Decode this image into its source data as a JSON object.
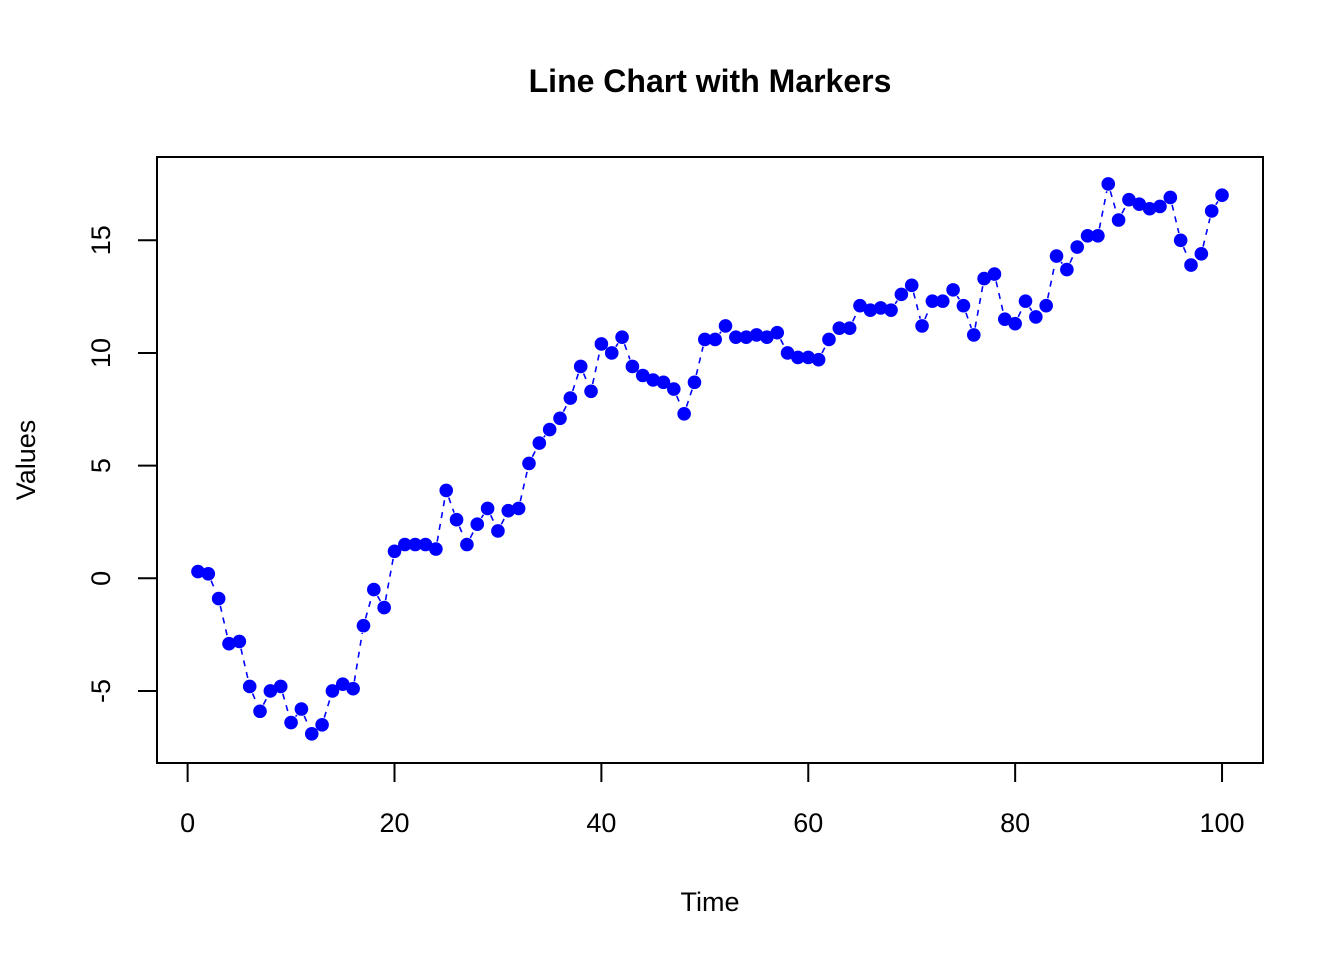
{
  "chart_data": {
    "type": "line",
    "title": "Line Chart with Markers",
    "xlabel": "Time",
    "ylabel": "Values",
    "xlim": [
      1,
      100
    ],
    "ylim": [
      -7.2,
      17.7
    ],
    "x_ticks": [
      0,
      20,
      40,
      60,
      80,
      100
    ],
    "y_ticks": [
      -5,
      0,
      5,
      10,
      15
    ],
    "x_tick_labels": [
      "0",
      "20",
      "40",
      "60",
      "80",
      "100"
    ],
    "y_tick_labels": [
      "-5",
      "0",
      "5",
      "10",
      "15"
    ],
    "grid": false,
    "line_style": "dashed",
    "marker": "filled-circle",
    "series_color": "#0000FF",
    "series": [
      {
        "name": "Values",
        "x": [
          1,
          2,
          3,
          4,
          5,
          6,
          7,
          8,
          9,
          10,
          11,
          12,
          13,
          14,
          15,
          16,
          17,
          18,
          19,
          20,
          21,
          22,
          23,
          24,
          25,
          26,
          27,
          28,
          29,
          30,
          31,
          32,
          33,
          34,
          35,
          36,
          37,
          38,
          39,
          40,
          41,
          42,
          43,
          44,
          45,
          46,
          47,
          48,
          49,
          50,
          51,
          52,
          53,
          54,
          55,
          56,
          57,
          58,
          59,
          60,
          61,
          62,
          63,
          64,
          65,
          66,
          67,
          68,
          69,
          70,
          71,
          72,
          73,
          74,
          75,
          76,
          77,
          78,
          79,
          80,
          81,
          82,
          83,
          84,
          85,
          86,
          87,
          88,
          89,
          90,
          91,
          92,
          93,
          94,
          95,
          96,
          97,
          98,
          99,
          100
        ],
        "values": [
          0.3,
          0.2,
          -0.9,
          -2.9,
          -2.8,
          -4.8,
          -5.9,
          -5.0,
          -4.8,
          -6.4,
          -5.8,
          -6.9,
          -6.5,
          -5.0,
          -4.7,
          -4.9,
          -2.1,
          -0.5,
          -1.3,
          1.2,
          1.5,
          1.5,
          1.5,
          1.3,
          3.9,
          2.6,
          1.5,
          2.4,
          3.1,
          2.1,
          3.0,
          3.1,
          5.1,
          6.0,
          6.6,
          7.1,
          8.0,
          9.4,
          8.3,
          10.4,
          10.0,
          10.7,
          9.4,
          9.0,
          8.8,
          8.7,
          8.4,
          7.3,
          8.7,
          10.6,
          10.6,
          11.2,
          10.7,
          10.7,
          10.8,
          10.7,
          10.9,
          10.0,
          9.8,
          9.8,
          9.7,
          10.6,
          11.1,
          11.1,
          12.1,
          11.9,
          12.0,
          11.9,
          12.6,
          13.0,
          11.2,
          12.3,
          12.3,
          12.8,
          12.1,
          10.8,
          13.3,
          13.5,
          11.5,
          11.3,
          12.3,
          11.6,
          12.1,
          14.3,
          13.7,
          14.7,
          15.2,
          15.2,
          17.5,
          15.9,
          16.8,
          16.6,
          16.4,
          16.5,
          16.9,
          15.0,
          13.9,
          14.4,
          16.3,
          17.0
        ]
      }
    ]
  }
}
